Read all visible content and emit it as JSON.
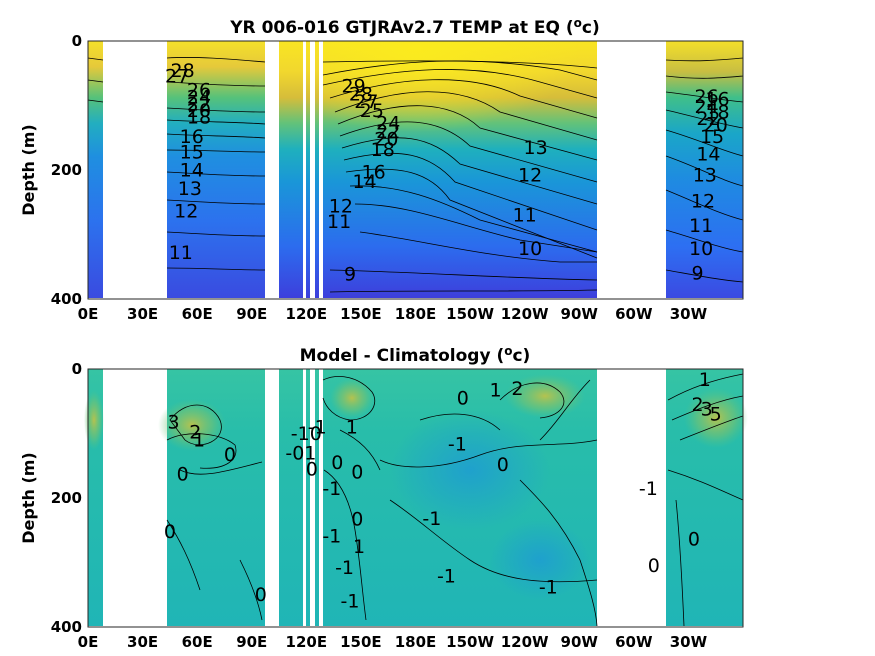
{
  "chart_data": [
    {
      "type": "heatmap",
      "title_prefix": "YR 006-016 GTJRAv2.7 TEMP at EQ (",
      "title_sup": "o",
      "title_suffix": "c)",
      "ylabel": "Depth (m)",
      "xlabel": "",
      "x_ticks": [
        "0E",
        "30E",
        "60E",
        "90E",
        "120E",
        "150E",
        "180E",
        "150W",
        "120W",
        "90W",
        "60W",
        "30W"
      ],
      "y_ticks": [
        "0",
        "200",
        "400"
      ],
      "ylim": [
        400,
        0
      ],
      "xlim_degE": [
        0,
        360
      ],
      "colormap": [
        "#3e26a8",
        "#2d6ff2",
        "#1aa6c8",
        "#42c08a",
        "#bcbe3b",
        "#f9e523"
      ],
      "contour_labels": [
        {
          "text": "28",
          "lon": 52,
          "depth": 56
        },
        {
          "text": "27",
          "lon": 49,
          "depth": 64
        },
        {
          "text": "26",
          "lon": 61,
          "depth": 86
        },
        {
          "text": "24",
          "lon": 61,
          "depth": 97
        },
        {
          "text": "22",
          "lon": 61,
          "depth": 108
        },
        {
          "text": "20",
          "lon": 61,
          "depth": 118
        },
        {
          "text": "18",
          "lon": 61,
          "depth": 128
        },
        {
          "text": "16",
          "lon": 57,
          "depth": 158
        },
        {
          "text": "15",
          "lon": 57,
          "depth": 182
        },
        {
          "text": "14",
          "lon": 57,
          "depth": 210
        },
        {
          "text": "13",
          "lon": 56,
          "depth": 239
        },
        {
          "text": "12",
          "lon": 54,
          "depth": 274
        },
        {
          "text": "11",
          "lon": 51,
          "depth": 338
        },
        {
          "text": "29",
          "lon": 146,
          "depth": 80
        },
        {
          "text": "28",
          "lon": 150,
          "depth": 92
        },
        {
          "text": "27",
          "lon": 153,
          "depth": 104
        },
        {
          "text": "25",
          "lon": 156,
          "depth": 118
        },
        {
          "text": "24",
          "lon": 165,
          "depth": 137
        },
        {
          "text": "22",
          "lon": 165,
          "depth": 150
        },
        {
          "text": "20",
          "lon": 164,
          "depth": 162
        },
        {
          "text": "18",
          "lon": 162,
          "depth": 178
        },
        {
          "text": "16",
          "lon": 157,
          "depth": 213
        },
        {
          "text": "14",
          "lon": 152,
          "depth": 228
        },
        {
          "text": "12",
          "lon": 139,
          "depth": 266
        },
        {
          "text": "11",
          "lon": 138,
          "depth": 290
        },
        {
          "text": "9",
          "lon": 144,
          "depth": 371
        },
        {
          "text": "13",
          "lon": 246,
          "depth": 175
        },
        {
          "text": "12",
          "lon": 243,
          "depth": 218
        },
        {
          "text": "11",
          "lon": 240,
          "depth": 280
        },
        {
          "text": "10",
          "lon": 243,
          "depth": 332
        },
        {
          "text": "13",
          "lon": 339,
          "depth": 218
        },
        {
          "text": "14",
          "lon": 341,
          "depth": 185
        },
        {
          "text": "15",
          "lon": 343,
          "depth": 158
        },
        {
          "text": "16",
          "lon": 346,
          "depth": 100
        },
        {
          "text": "18",
          "lon": 346,
          "depth": 120
        },
        {
          "text": "20",
          "lon": 345,
          "depth": 140
        },
        {
          "text": "22",
          "lon": 341,
          "depth": 130
        },
        {
          "text": "24",
          "lon": 340,
          "depth": 112
        },
        {
          "text": "26",
          "lon": 340,
          "depth": 96
        },
        {
          "text": "12",
          "lon": 338,
          "depth": 258
        },
        {
          "text": "11",
          "lon": 337,
          "depth": 296
        },
        {
          "text": "10",
          "lon": 337,
          "depth": 332
        },
        {
          "text": "9",
          "lon": 335,
          "depth": 370
        }
      ]
    },
    {
      "type": "heatmap",
      "title_prefix": "Model - Climatology (",
      "title_sup": "o",
      "title_suffix": "c)",
      "ylabel": "Depth (m)",
      "xlabel": "",
      "x_ticks": [
        "0E",
        "30E",
        "60E",
        "90E",
        "120E",
        "150E",
        "180E",
        "150W",
        "120W",
        "90W",
        "60W",
        "30W"
      ],
      "y_ticks": [
        "0",
        "200",
        "400"
      ],
      "ylim": [
        400,
        0
      ],
      "xlim_degE": [
        0,
        360
      ],
      "colormap": [
        "#3e26a8",
        "#2d6ff2",
        "#1aa6c8",
        "#42c08a",
        "#bcbe3b",
        "#f9e523"
      ],
      "contour_labels": [
        {
          "text": "3",
          "lon": 47,
          "depth": 92
        },
        {
          "text": "2",
          "lon": 59,
          "depth": 108
        },
        {
          "text": "1",
          "lon": 61,
          "depth": 120
        },
        {
          "text": "0",
          "lon": 78,
          "depth": 143
        },
        {
          "text": "0",
          "lon": 52,
          "depth": 173
        },
        {
          "text": "0",
          "lon": 45,
          "depth": 262
        },
        {
          "text": "0",
          "lon": 95,
          "depth": 360
        },
        {
          "text": "-1",
          "lon": 126,
          "depth": 100
        },
        {
          "text": "-10",
          "lon": 120,
          "depth": 110
        },
        {
          "text": "-01",
          "lon": 117,
          "depth": 140
        },
        {
          "text": "0",
          "lon": 123,
          "depth": 165
        },
        {
          "text": "0",
          "lon": 137,
          "depth": 155
        },
        {
          "text": "1",
          "lon": 145,
          "depth": 100
        },
        {
          "text": "0",
          "lon": 148,
          "depth": 170
        },
        {
          "text": "-1",
          "lon": 134,
          "depth": 195
        },
        {
          "text": "0",
          "lon": 148,
          "depth": 243
        },
        {
          "text": "1",
          "lon": 149,
          "depth": 285
        },
        {
          "text": "-1",
          "lon": 141,
          "depth": 318
        },
        {
          "text": "-1",
          "lon": 144,
          "depth": 370
        },
        {
          "text": "-1",
          "lon": 134,
          "depth": 269
        },
        {
          "text": "0",
          "lon": 206,
          "depth": 55
        },
        {
          "text": "1",
          "lon": 224,
          "depth": 43
        },
        {
          "text": "2",
          "lon": 236,
          "depth": 40
        },
        {
          "text": "-1",
          "lon": 203,
          "depth": 126
        },
        {
          "text": "0",
          "lon": 228,
          "depth": 158
        },
        {
          "text": "-1",
          "lon": 189,
          "depth": 242
        },
        {
          "text": "-1",
          "lon": 197,
          "depth": 331
        },
        {
          "text": "-1",
          "lon": 253,
          "depth": 348
        },
        {
          "text": "1",
          "lon": 339,
          "depth": 26
        },
        {
          "text": "2",
          "lon": 335,
          "depth": 65
        },
        {
          "text": "3",
          "lon": 340,
          "depth": 72
        },
        {
          "text": "5",
          "lon": 345,
          "depth": 80
        },
        {
          "text": "-1",
          "lon": 308,
          "depth": 195
        },
        {
          "text": "0",
          "lon": 333,
          "depth": 274
        },
        {
          "text": "0",
          "lon": 311,
          "depth": 315
        }
      ]
    }
  ]
}
